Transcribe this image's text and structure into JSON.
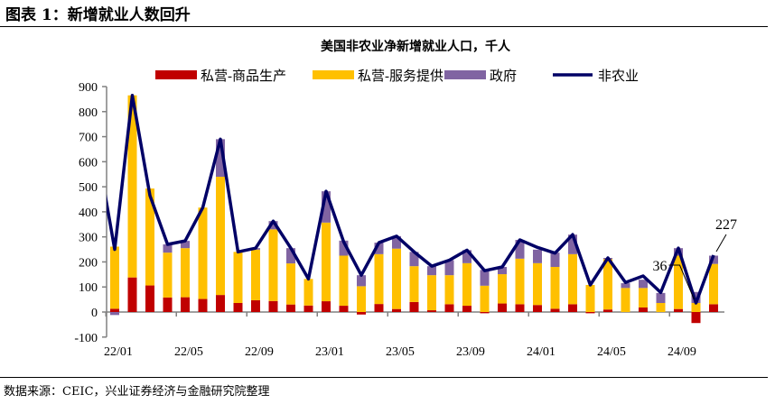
{
  "figure_title": "图表 1：新增就业人数回升",
  "source": "数据来源：CEIC，兴业证券经济与金融研究院整理",
  "chart_data": {
    "type": "bar",
    "stacked": true,
    "title": "美国非农业净新增就业人口，千人",
    "legend_position": "top",
    "ylim": [
      -100,
      900
    ],
    "yticks": [
      -100,
      0,
      100,
      200,
      300,
      400,
      500,
      600,
      700,
      800,
      900
    ],
    "xtick_labels": [
      "22/01",
      "22/05",
      "22/09",
      "23/01",
      "23/05",
      "23/09",
      "24/01",
      "24/05",
      "24/09"
    ],
    "categories": [
      "21/12",
      "22/01",
      "22/02",
      "22/03",
      "22/04",
      "22/05",
      "22/06",
      "22/07",
      "22/08",
      "22/09",
      "22/10",
      "22/11",
      "22/12",
      "23/01",
      "23/02",
      "23/03",
      "23/04",
      "23/05",
      "23/06",
      "23/07",
      "23/08",
      "23/09",
      "23/10",
      "23/11",
      "23/12",
      "24/01",
      "24/02",
      "24/03",
      "24/04",
      "24/05",
      "24/06",
      "24/07",
      "24/08",
      "24/09",
      "24/10",
      "24/11"
    ],
    "series": [
      {
        "name": "私营-商品生产",
        "kind": "bar",
        "color": "#C00000",
        "values": [
          null,
          13,
          138,
          106,
          58,
          59,
          52,
          68,
          36,
          47,
          44,
          30,
          26,
          43,
          25,
          -10,
          32,
          12,
          40,
          7,
          31,
          25,
          -5,
          34,
          31,
          28,
          13,
          31,
          -5,
          10,
          0,
          18,
          0,
          12,
          -44,
          31
        ]
      },
      {
        "name": "私营-服务提供",
        "kind": "bar",
        "color": "#FFC000",
        "values": [
          null,
          248,
          727,
          387,
          179,
          196,
          365,
          472,
          204,
          202,
          286,
          164,
          106,
          314,
          200,
          103,
          199,
          241,
          143,
          140,
          116,
          170,
          105,
          117,
          182,
          167,
          167,
          200,
          108,
          201,
          96,
          78,
          36,
          213,
          36,
          161
        ]
      },
      {
        "name": "政府",
        "kind": "bar",
        "color": "#8064A2",
        "values": [
          null,
          -12,
          0,
          0,
          33,
          29,
          0,
          150,
          0,
          6,
          33,
          61,
          0,
          125,
          60,
          44,
          46,
          50,
          57,
          36,
          60,
          52,
          63,
          29,
          75,
          54,
          57,
          78,
          0,
          5,
          19,
          33,
          40,
          30,
          44,
          33
        ]
      },
      {
        "name": "非农业",
        "kind": "line",
        "color": "#000066",
        "values": [
          650,
          250,
          865,
          465,
          270,
          284,
          417,
          690,
          240,
          255,
          363,
          255,
          132,
          482,
          280,
          147,
          277,
          303,
          240,
          183,
          207,
          247,
          165,
          180,
          288,
          258,
          235,
          309,
          108,
          216,
          118,
          144,
          78,
          255,
          36,
          227
        ]
      }
    ],
    "annotations": [
      {
        "text": "227",
        "category": "24/11"
      },
      {
        "text": "36",
        "category": "24/10"
      }
    ]
  }
}
